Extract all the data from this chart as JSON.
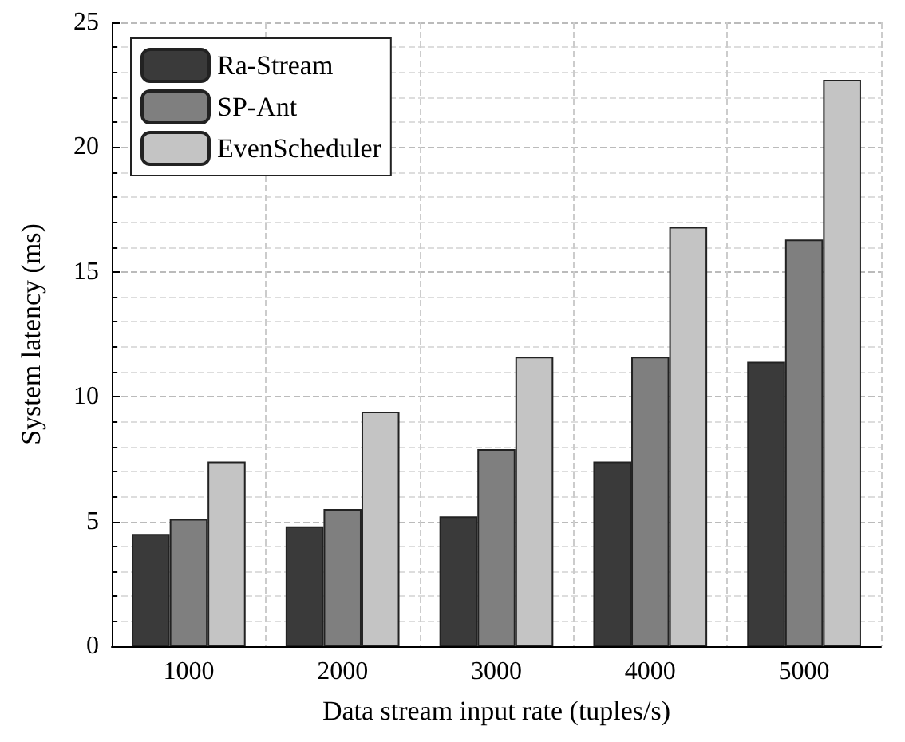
{
  "chart_data": {
    "type": "bar",
    "xlabel": "Data stream input rate (tuples/s)",
    "ylabel": "System latency (ms)",
    "categories": [
      "1000",
      "2000",
      "3000",
      "4000",
      "5000"
    ],
    "series": [
      {
        "name": "Ra-Stream",
        "color": "#3a3a3a",
        "values": [
          4.5,
          4.8,
          5.2,
          7.4,
          11.4
        ]
      },
      {
        "name": "SP-Ant",
        "color": "#7f7f7f",
        "values": [
          5.1,
          5.5,
          7.9,
          11.6,
          16.3
        ]
      },
      {
        "name": "EvenScheduler",
        "color": "#c4c4c4",
        "values": [
          7.4,
          9.4,
          11.6,
          16.8,
          22.7
        ]
      }
    ],
    "ylim": [
      0,
      25
    ],
    "yticks": [
      0,
      5,
      10,
      15,
      20,
      25
    ],
    "grid": true,
    "legend": "top left"
  }
}
